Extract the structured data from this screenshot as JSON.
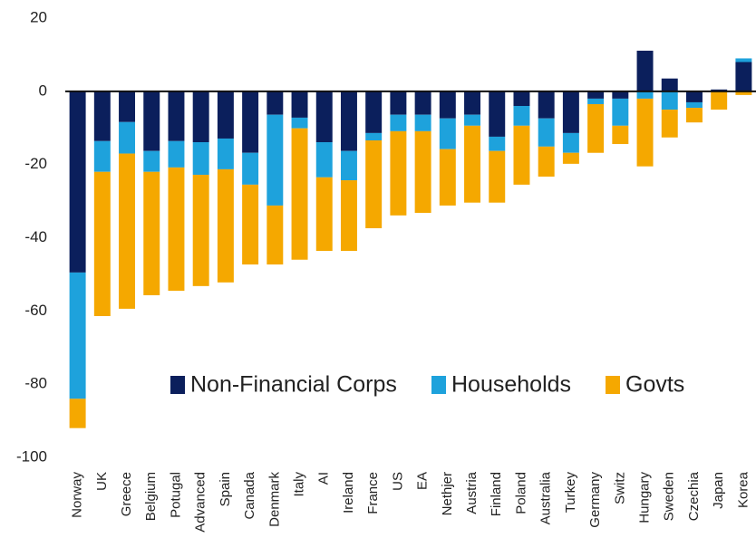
{
  "chart_data": {
    "type": "bar",
    "stacked": true,
    "categories": [
      "Norway",
      "UK",
      "Greece",
      "Belgium",
      "Potugal",
      "Advanced",
      "Spain",
      "Canada",
      "Denmark",
      "Italy",
      "AI",
      "Ireland",
      "France",
      "US",
      "EA",
      "Nethjer",
      "Austria",
      "Finland",
      "Poland",
      "Australia",
      "Turkey",
      "Germany",
      "Switz",
      "Hungary",
      "Sweden",
      "Czechia",
      "Japan",
      "Korea"
    ],
    "series": [
      {
        "name": "Non-Financial Corps",
        "color": "#0b1f5c",
        "values": [
          -49.5,
          -13.6,
          -8.4,
          -16.3,
          -13.6,
          -13.9,
          -12.9,
          -16.8,
          -6.4,
          -7.2,
          -13.9,
          -16.3,
          -11.4,
          -6.4,
          -6.4,
          -7.4,
          -6.4,
          -12.4,
          -4,
          -7.4,
          -11.4,
          -2,
          -2,
          11.1,
          3.5,
          -3,
          0.5,
          8
        ]
      },
      {
        "name": "Households",
        "color": "#1ea2dc",
        "values": [
          -34.5,
          -8.4,
          -8.6,
          -5.7,
          -7.2,
          -8.9,
          -8.4,
          -8.7,
          -24.8,
          -2.9,
          -9.6,
          -8,
          -2,
          -4.5,
          -4.5,
          -8.4,
          -3,
          -3.9,
          -5.4,
          -7.7,
          -5.4,
          -1.5,
          -7.4,
          -2,
          -5,
          -1.5,
          0,
          1
        ]
      },
      {
        "name": "Govts",
        "color": "#f5a800",
        "values": [
          -8,
          -39.4,
          -42.4,
          -33.7,
          -33.7,
          -30.4,
          -30.9,
          -21.8,
          -16.1,
          -35.9,
          -20.1,
          -19.3,
          -24,
          -23,
          -22.3,
          -15.4,
          -21,
          -14.1,
          -16.1,
          -8.2,
          -3,
          -13.3,
          -5,
          -18.5,
          -7.6,
          -4,
          -5,
          -1
        ]
      }
    ],
    "ylim": [
      -100,
      20
    ],
    "yticks": [
      20,
      0,
      -20,
      -40,
      -60,
      -80,
      -100
    ],
    "grid": false,
    "legend": "center"
  }
}
